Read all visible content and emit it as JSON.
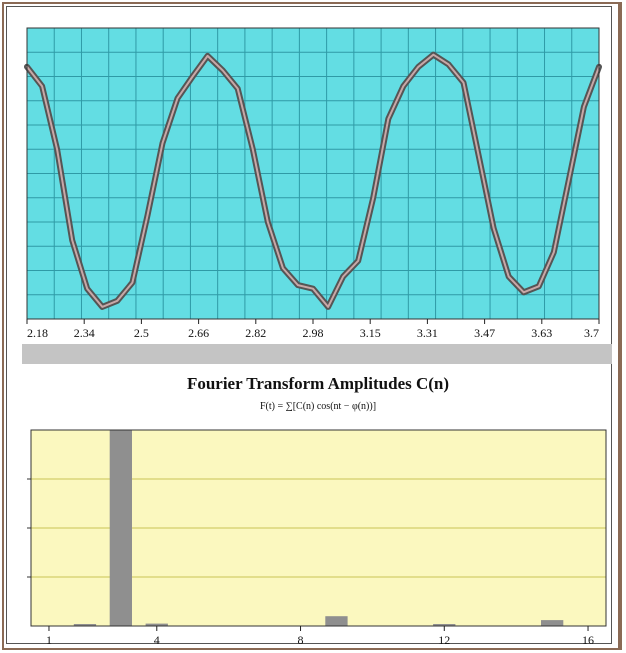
{
  "colors": {
    "top_plot_bg": "#63dde3",
    "top_grid": "#2f9aa6",
    "signal_outer": "#555555",
    "signal_inner": "#c9a7a7",
    "bottom_plot_bg": "#fbf8bf",
    "bottom_grid": "#c8c455",
    "bar": "#8f8f8f",
    "scrollbar": "#c4c4c4"
  },
  "chart_data": [
    {
      "type": "line",
      "title": "",
      "xlabel": "",
      "ylabel": "",
      "xlim": [
        2.18,
        3.7
      ],
      "ylim": [
        -1.2,
        1.2
      ],
      "grid": true,
      "x_tick_labels": [
        "2.18",
        "2.34",
        "2.5",
        "2.66",
        "2.82",
        "2.98",
        "3.15",
        "3.31",
        "3.47",
        "3.63",
        "3.7"
      ],
      "series": [
        {
          "x": [
            2.18,
            2.22,
            2.26,
            2.3,
            2.34,
            2.38,
            2.42,
            2.46,
            2.5,
            2.54,
            2.58,
            2.62,
            2.66,
            2.7,
            2.74,
            2.78,
            2.82,
            2.86,
            2.9,
            2.94,
            2.98,
            3.02,
            3.06,
            3.1,
            3.14,
            3.18,
            3.22,
            3.26,
            3.3,
            3.34,
            3.38,
            3.42,
            3.46,
            3.5,
            3.54,
            3.58,
            3.62,
            3.66,
            3.7
          ],
          "y": [
            0.88,
            0.72,
            0.2,
            -0.55,
            -0.95,
            -1.1,
            -1.05,
            -0.9,
            -0.35,
            0.25,
            0.62,
            0.8,
            0.97,
            0.85,
            0.7,
            0.2,
            -0.4,
            -0.78,
            -0.92,
            -0.95,
            -1.1,
            -0.85,
            -0.72,
            -0.2,
            0.45,
            0.72,
            0.88,
            0.98,
            0.9,
            0.75,
            0.15,
            -0.45,
            -0.85,
            -0.98,
            -0.93,
            -0.65,
            -0.05,
            0.55,
            0.88
          ]
        }
      ]
    },
    {
      "type": "bar",
      "title": "Fourier Transform Amplitudes C(n)",
      "subtitle": "F(t) = ∑[C(n) cos(nt − φ(n))]",
      "xlabel": "",
      "ylabel": "",
      "xlim": [
        0.5,
        16.5
      ],
      "ylim": [
        0,
        1
      ],
      "grid": true,
      "x_tick_labels": [
        "1",
        "4",
        "8",
        "12",
        "16"
      ],
      "x_ticks": [
        1,
        4,
        8,
        12,
        16
      ],
      "categories": [
        1,
        2,
        3,
        4,
        5,
        6,
        7,
        8,
        9,
        10,
        11,
        12,
        13,
        14,
        15,
        16
      ],
      "values": [
        0.0,
        0.01,
        1.0,
        0.012,
        0.0,
        0.0,
        0.0,
        0.0,
        0.05,
        0.0,
        0.0,
        0.005,
        0.0,
        0.0,
        0.03,
        0.0
      ]
    }
  ]
}
